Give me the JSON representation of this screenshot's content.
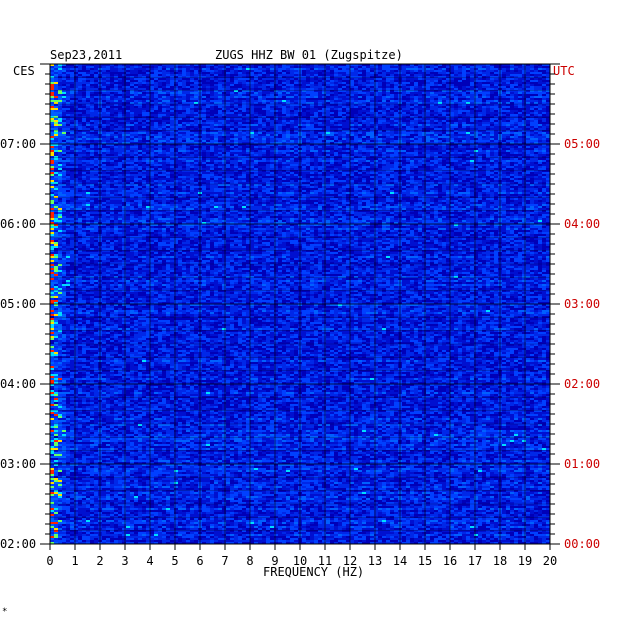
{
  "chart_data": {
    "type": "heatmap",
    "date": "Sep23,2011",
    "title": "ZUGS HHZ BW 01 (Zugspitze)",
    "left_tz": "CES",
    "right_tz": "UTC",
    "xlabel": "FREQUENCY (HZ)",
    "x_ticks": [
      "0",
      "1",
      "2",
      "3",
      "4",
      "5",
      "6",
      "7",
      "8",
      "9",
      "10",
      "11",
      "12",
      "13",
      "14",
      "15",
      "16",
      "17",
      "18",
      "19",
      "20"
    ],
    "xlim": [
      0,
      20
    ],
    "left_time_labels": [
      "07:00",
      "06:00",
      "05:00",
      "04:00",
      "03:00",
      "02:00"
    ],
    "right_time_labels": [
      "05:00",
      "04:00",
      "03:00",
      "02:00",
      "01:00",
      "00:00"
    ],
    "colorscale": [
      "#0000cc",
      "#0044ff",
      "#00ccff",
      "#ffff00",
      "#ff0000"
    ],
    "footnote": "*"
  }
}
